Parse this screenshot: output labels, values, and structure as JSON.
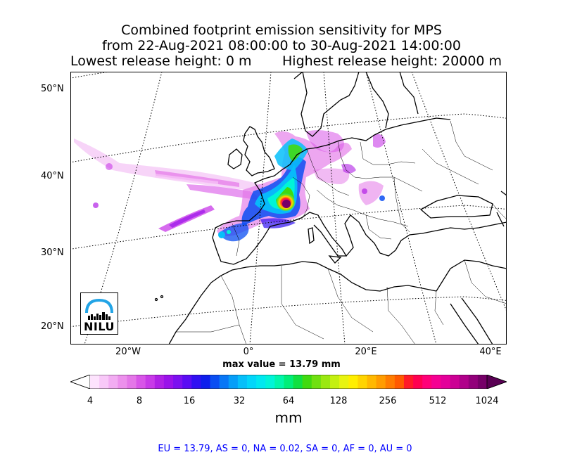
{
  "figure": {
    "title_line1": "Combined footprint emission sensitivity for MPS",
    "title_line2": "from 22-Aug-2021 08:00:00 to 30-Aug-2021 14:00:00",
    "lowest_release": "Lowest release height: 0 m",
    "highest_release": "Highest release height: 20000 m",
    "max_value": "max value = 13.79 mm"
  },
  "map": {
    "lat_labels": [
      "50°N",
      "40°N",
      "30°N",
      "20°N"
    ],
    "lon_labels": [
      "20°W",
      "0°",
      "20°E",
      "40°E"
    ],
    "logo_text": "NILU"
  },
  "colorbar": {
    "ticks": [
      "4",
      "8",
      "16",
      "32",
      "64",
      "128",
      "256",
      "512",
      "1024"
    ],
    "unit": "mm",
    "colors": [
      "#ffffff",
      "#fde3fd",
      "#f8c8f8",
      "#f2acf2",
      "#ec90ec",
      "#e476e8",
      "#d855e8",
      "#c83ae8",
      "#b020e6",
      "#9a12ea",
      "#7c10f0",
      "#5a0cf4",
      "#3010f2",
      "#0e1eec",
      "#0a4ef2",
      "#0877f6",
      "#069ef8",
      "#06bffa",
      "#02d6fa",
      "#00e8f0",
      "#00f4d8",
      "#00f6aa",
      "#00ee78",
      "#10e040",
      "#40da10",
      "#70e010",
      "#9ae810",
      "#c4f010",
      "#e8f410",
      "#ffee00",
      "#ffd400",
      "#ffb800",
      "#ff9c00",
      "#ff7c00",
      "#ff5a00",
      "#ff1a28",
      "#ff0050",
      "#ff0078",
      "#f50092",
      "#e4009a",
      "#cc0094",
      "#b0008a",
      "#92007a",
      "#760068",
      "#5a0054"
    ]
  },
  "footer": {
    "text": "EU = 13.79,  AS = 0,  NA = 0.02,  SA = 0,  AF = 0,  AU = 0"
  }
}
